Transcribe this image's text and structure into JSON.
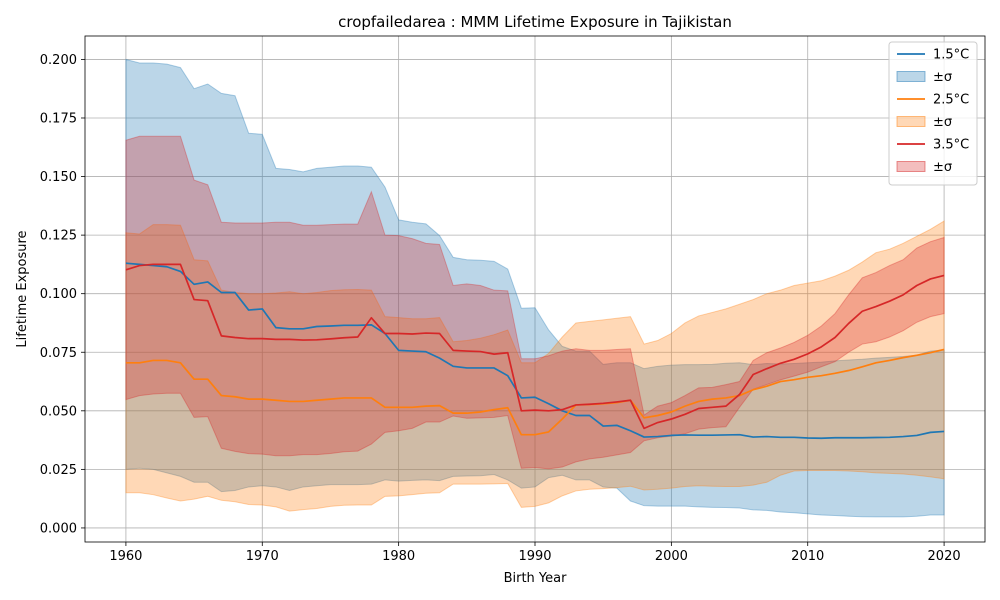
{
  "chart_data": {
    "type": "line",
    "title": "cropfailedarea : MMM Lifetime Exposure in Tajikistan",
    "xlabel": "Birth Year",
    "ylabel": "Lifetime Exposure",
    "xlim": [
      1957,
      2023
    ],
    "ylim": [
      -0.006,
      0.21
    ],
    "xticks": [
      1960,
      1970,
      1980,
      1990,
      2000,
      2010,
      2020
    ],
    "xtick_labels": [
      "1960",
      "1970",
      "1980",
      "1990",
      "2000",
      "2010",
      "2020"
    ],
    "yticks": [
      0.0,
      0.025,
      0.05,
      0.075,
      0.1,
      0.125,
      0.15,
      0.175,
      0.2
    ],
    "ytick_labels": [
      "0.000",
      "0.025",
      "0.050",
      "0.075",
      "0.100",
      "0.125",
      "0.150",
      "0.175",
      "0.200"
    ],
    "grid": true,
    "legend_position": "top-right",
    "x": [
      1960,
      1961,
      1962,
      1963,
      1964,
      1965,
      1966,
      1967,
      1968,
      1969,
      1970,
      1971,
      1972,
      1973,
      1974,
      1975,
      1976,
      1977,
      1978,
      1979,
      1980,
      1981,
      1982,
      1983,
      1984,
      1985,
      1986,
      1987,
      1988,
      1989,
      1990,
      1991,
      1992,
      1993,
      1994,
      1995,
      1996,
      1997,
      1998,
      1999,
      2000,
      2001,
      2002,
      2003,
      2004,
      2005,
      2006,
      2007,
      2008,
      2009,
      2010,
      2011,
      2012,
      2013,
      2014,
      2015,
      2016,
      2017,
      2018,
      2019,
      2020
    ],
    "series": [
      {
        "name": "1.5°C",
        "band_label": "±σ",
        "color": "#1f77b4",
        "fill": "#1f77b4",
        "fill_alpha": 0.3,
        "mean": [
          0.113,
          0.1125,
          0.112,
          0.1115,
          0.1095,
          0.104,
          0.105,
          0.1005,
          0.1005,
          0.093,
          0.0935,
          0.0855,
          0.085,
          0.085,
          0.086,
          0.0862,
          0.0865,
          0.0865,
          0.0867,
          0.083,
          0.0758,
          0.0755,
          0.0752,
          0.0725,
          0.069,
          0.0683,
          0.0683,
          0.0683,
          0.065,
          0.0555,
          0.0558,
          0.053,
          0.05,
          0.048,
          0.048,
          0.0435,
          0.0438,
          0.0415,
          0.0388,
          0.039,
          0.0395,
          0.0397,
          0.0396,
          0.0396,
          0.0397,
          0.0398,
          0.0388,
          0.039,
          0.0387,
          0.0387,
          0.0384,
          0.0383,
          0.0385,
          0.0385,
          0.0385,
          0.0386,
          0.0387,
          0.039,
          0.0395,
          0.0408,
          0.0412
        ],
        "upper": [
          0.2,
          0.1985,
          0.1985,
          0.198,
          0.1965,
          0.1875,
          0.1895,
          0.1855,
          0.1845,
          0.1685,
          0.168,
          0.1535,
          0.153,
          0.152,
          0.1535,
          0.154,
          0.1545,
          0.1545,
          0.154,
          0.1455,
          0.1315,
          0.1305,
          0.1298,
          0.1248,
          0.1155,
          0.1145,
          0.1143,
          0.1138,
          0.1105,
          0.0938,
          0.094,
          0.0845,
          0.0775,
          0.0755,
          0.0755,
          0.0698,
          0.0705,
          0.0705,
          0.068,
          0.069,
          0.0695,
          0.0697,
          0.0697,
          0.0698,
          0.0703,
          0.0705,
          0.0697,
          0.0702,
          0.07,
          0.0702,
          0.0705,
          0.0708,
          0.0713,
          0.0717,
          0.072,
          0.0725,
          0.0728,
          0.0732,
          0.0738,
          0.0755,
          0.076
        ],
        "lower": [
          0.025,
          0.0255,
          0.025,
          0.0235,
          0.022,
          0.0195,
          0.0195,
          0.0155,
          0.016,
          0.0175,
          0.018,
          0.0175,
          0.016,
          0.0175,
          0.018,
          0.0185,
          0.0185,
          0.0185,
          0.0187,
          0.0205,
          0.02,
          0.0203,
          0.0205,
          0.0202,
          0.022,
          0.0222,
          0.0223,
          0.0228,
          0.0205,
          0.017,
          0.0175,
          0.0215,
          0.0225,
          0.0205,
          0.0205,
          0.0175,
          0.017,
          0.0115,
          0.0095,
          0.0093,
          0.0093,
          0.0093,
          0.009,
          0.0088,
          0.0087,
          0.0085,
          0.0077,
          0.0075,
          0.0068,
          0.0065,
          0.006,
          0.0055,
          0.0053,
          0.005,
          0.0048,
          0.0047,
          0.0047,
          0.0047,
          0.005,
          0.0055,
          0.0055
        ]
      },
      {
        "name": "2.5°C",
        "band_label": "±σ",
        "color": "#ff7f0e",
        "fill": "#ff7f0e",
        "fill_alpha": 0.3,
        "mean": [
          0.0705,
          0.0705,
          0.0715,
          0.0715,
          0.0705,
          0.0635,
          0.0635,
          0.0565,
          0.056,
          0.055,
          0.055,
          0.0545,
          0.054,
          0.054,
          0.0545,
          0.055,
          0.0555,
          0.0555,
          0.0555,
          0.0515,
          0.0515,
          0.0515,
          0.052,
          0.0522,
          0.049,
          0.049,
          0.0495,
          0.0505,
          0.0513,
          0.0398,
          0.0398,
          0.041,
          0.0465,
          0.0525,
          0.0527,
          0.053,
          0.0535,
          0.0545,
          0.047,
          0.048,
          0.0495,
          0.052,
          0.054,
          0.055,
          0.0555,
          0.0565,
          0.059,
          0.0605,
          0.0625,
          0.0633,
          0.0643,
          0.065,
          0.066,
          0.0672,
          0.0688,
          0.0705,
          0.0715,
          0.0727,
          0.0737,
          0.0748,
          0.0762
        ],
        "upper": [
          0.126,
          0.1255,
          0.1295,
          0.1295,
          0.1292,
          0.1145,
          0.114,
          0.1015,
          0.1005,
          0.1,
          0.1,
          0.1003,
          0.1008,
          0.1,
          0.1005,
          0.1013,
          0.1017,
          0.1018,
          0.1015,
          0.0902,
          0.0898,
          0.0893,
          0.0893,
          0.0898,
          0.0795,
          0.08,
          0.081,
          0.0825,
          0.0845,
          0.0705,
          0.0705,
          0.0745,
          0.0815,
          0.0875,
          0.0882,
          0.0888,
          0.0895,
          0.0902,
          0.0785,
          0.08,
          0.083,
          0.0875,
          0.0905,
          0.092,
          0.0935,
          0.0955,
          0.0975,
          0.1,
          0.1015,
          0.1035,
          0.1045,
          0.1055,
          0.1075,
          0.11,
          0.1135,
          0.1175,
          0.119,
          0.1215,
          0.1245,
          0.1275,
          0.131
        ],
        "lower": [
          0.015,
          0.015,
          0.0142,
          0.0128,
          0.0115,
          0.0123,
          0.0135,
          0.0118,
          0.0112,
          0.01,
          0.0098,
          0.009,
          0.0072,
          0.0078,
          0.0083,
          0.0092,
          0.0097,
          0.0098,
          0.0098,
          0.0135,
          0.0137,
          0.0142,
          0.0148,
          0.015,
          0.0187,
          0.0187,
          0.0187,
          0.0188,
          0.019,
          0.0088,
          0.0092,
          0.0107,
          0.0137,
          0.0158,
          0.0165,
          0.0168,
          0.0172,
          0.0178,
          0.0162,
          0.0165,
          0.017,
          0.0177,
          0.018,
          0.0178,
          0.0177,
          0.0177,
          0.0183,
          0.0195,
          0.0225,
          0.0243,
          0.0245,
          0.0245,
          0.0245,
          0.0243,
          0.024,
          0.0235,
          0.0233,
          0.023,
          0.0225,
          0.0218,
          0.021
        ]
      },
      {
        "name": "3.5°C",
        "band_label": "±σ",
        "color": "#d62728",
        "fill": "#d62728",
        "fill_alpha": 0.3,
        "mean": [
          0.1102,
          0.112,
          0.1125,
          0.1125,
          0.1125,
          0.0975,
          0.097,
          0.082,
          0.0813,
          0.0808,
          0.0808,
          0.0805,
          0.0805,
          0.0802,
          0.0803,
          0.0807,
          0.0812,
          0.0815,
          0.0897,
          0.083,
          0.083,
          0.0828,
          0.0832,
          0.083,
          0.0758,
          0.0755,
          0.0753,
          0.0742,
          0.0748,
          0.05,
          0.0503,
          0.05,
          0.0505,
          0.0525,
          0.0528,
          0.0532,
          0.0538,
          0.0545,
          0.0425,
          0.045,
          0.0465,
          0.0485,
          0.051,
          0.0515,
          0.052,
          0.057,
          0.0655,
          0.068,
          0.0703,
          0.072,
          0.0743,
          0.0773,
          0.0813,
          0.0873,
          0.0925,
          0.0945,
          0.0968,
          0.0995,
          0.1035,
          0.1063,
          0.1078
        ],
        "upper": [
          0.1655,
          0.1672,
          0.1672,
          0.1672,
          0.1672,
          0.1485,
          0.1465,
          0.1305,
          0.1302,
          0.1302,
          0.1302,
          0.1305,
          0.1305,
          0.1292,
          0.1292,
          0.1295,
          0.1297,
          0.1297,
          0.1435,
          0.125,
          0.1248,
          0.1235,
          0.1215,
          0.121,
          0.1035,
          0.1042,
          0.1035,
          0.1015,
          0.1012,
          0.0722,
          0.0722,
          0.0735,
          0.0755,
          0.0765,
          0.0758,
          0.0758,
          0.0762,
          0.0765,
          0.0482,
          0.052,
          0.0535,
          0.0565,
          0.0598,
          0.06,
          0.0612,
          0.0625,
          0.0715,
          0.0748,
          0.0768,
          0.0792,
          0.0822,
          0.0862,
          0.0915,
          0.0995,
          0.1068,
          0.109,
          0.112,
          0.1145,
          0.1195,
          0.1222,
          0.124
        ],
        "lower": [
          0.0548,
          0.0565,
          0.0572,
          0.0575,
          0.0575,
          0.0472,
          0.0475,
          0.034,
          0.0327,
          0.0317,
          0.0315,
          0.0308,
          0.0308,
          0.0313,
          0.0313,
          0.0318,
          0.0325,
          0.0328,
          0.0358,
          0.0408,
          0.0415,
          0.0425,
          0.0452,
          0.0452,
          0.0478,
          0.0468,
          0.047,
          0.0472,
          0.048,
          0.0255,
          0.0258,
          0.0252,
          0.026,
          0.0282,
          0.0295,
          0.0302,
          0.0312,
          0.0322,
          0.0372,
          0.0385,
          0.0392,
          0.0402,
          0.0422,
          0.0428,
          0.0432,
          0.0515,
          0.0592,
          0.0612,
          0.0632,
          0.0648,
          0.0665,
          0.0688,
          0.071,
          0.075,
          0.0785,
          0.0795,
          0.0815,
          0.0842,
          0.0878,
          0.0902,
          0.0915
        ]
      }
    ]
  }
}
